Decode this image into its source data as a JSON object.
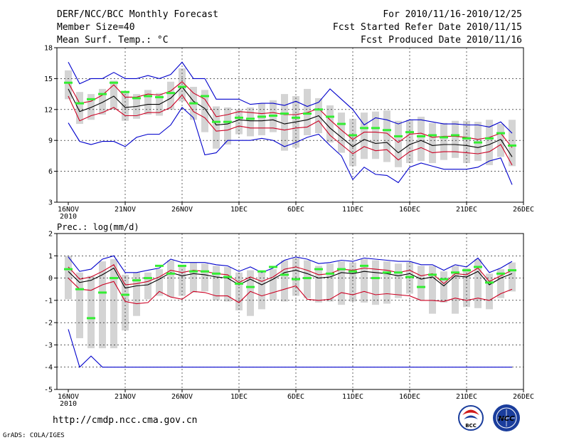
{
  "header": {
    "title": "DERF/NCC/BCC Monthly Forecast",
    "member": "Member Size=40",
    "for_range": "For 2010/11/16-2010/12/25",
    "refer_date": "Fcst Started Refer Date 2010/11/15",
    "produced_date": "Fcst Produced Date 2010/11/16"
  },
  "footer": {
    "url": "http://cmdp.ncc.cma.gov.cn",
    "credit": "GrADS: COLA/IGES",
    "logo_bcc": "BCC",
    "logo_ncc": "NCC"
  },
  "colors": {
    "ensemble_max_min": "#0000cc",
    "spread_band": "#cc0022",
    "mean": "#000000",
    "box": "#d4d4d4",
    "marker": "#33ee33",
    "frame": "#000000",
    "dashed_grid": "#000000"
  },
  "chart_data": [
    {
      "id": "temperature",
      "type": "line",
      "title": "Mean Surf. Temp.: °C",
      "xlabel": "",
      "ylabel": "",
      "ylim": [
        3,
        18
      ],
      "yticks": [
        3,
        6,
        9,
        12,
        15,
        18
      ],
      "ytick_labels": [
        "3",
        "6",
        "9",
        "12",
        "15",
        "18"
      ],
      "xticks": [
        0,
        5,
        10,
        15,
        20,
        25,
        30,
        35,
        40
      ],
      "xtick_labels": [
        "16NOV",
        "21NOV",
        "26NOV",
        "1DEC",
        "6DEC",
        "11DEC",
        "16DEC",
        "21DEC",
        "26DEC"
      ],
      "x_sub_label": "2010",
      "dashed_gridlines_at_ticks": true,
      "series": [
        {
          "name": "max",
          "color": "#0000cc",
          "values": [
            16.6,
            14.5,
            15.0,
            15.0,
            15.6,
            15.0,
            15.0,
            15.3,
            15.0,
            15.4,
            16.6,
            15.0,
            15.0,
            13.0,
            13.0,
            13.0,
            12.5,
            12.6,
            12.6,
            12.4,
            12.8,
            12.3,
            12.7,
            14.0,
            13.0,
            12.0,
            10.5,
            11.2,
            11.0,
            10.6,
            11.0,
            11.0,
            10.8,
            10.6,
            10.6,
            10.5,
            10.5,
            10.3,
            10.8,
            9.7
          ]
        },
        {
          "name": "plus_spread",
          "color": "#cc0022",
          "values": [
            14.6,
            12.6,
            12.8,
            13.4,
            14.4,
            13.2,
            13.2,
            13.5,
            13.4,
            13.8,
            14.7,
            13.6,
            13.0,
            11.3,
            11.5,
            11.8,
            11.7,
            11.6,
            11.7,
            11.5,
            11.5,
            11.7,
            12.1,
            11.0,
            10.0,
            9.1,
            9.8,
            9.8,
            9.7,
            8.8,
            9.6,
            9.7,
            9.3,
            9.4,
            9.4,
            9.3,
            9.1,
            9.3,
            9.7,
            8.3
          ]
        },
        {
          "name": "mean",
          "color": "#000000",
          "values": [
            14.0,
            11.8,
            12.2,
            12.7,
            13.3,
            12.2,
            12.3,
            12.5,
            12.5,
            13.1,
            14.2,
            12.8,
            12.1,
            10.5,
            10.6,
            11.0,
            10.9,
            10.9,
            11.0,
            10.6,
            10.8,
            11.0,
            11.4,
            10.2,
            9.3,
            8.4,
            9.1,
            8.7,
            8.8,
            7.8,
            8.6,
            9.0,
            8.5,
            8.6,
            8.6,
            8.5,
            8.3,
            8.6,
            9.1,
            7.4
          ]
        },
        {
          "name": "minus_spread",
          "color": "#cc0022",
          "values": [
            13.3,
            10.9,
            11.4,
            11.7,
            12.2,
            11.4,
            11.4,
            11.7,
            11.7,
            12.2,
            13.4,
            11.8,
            11.2,
            9.9,
            10.0,
            10.4,
            10.2,
            10.2,
            10.2,
            10.0,
            10.2,
            10.3,
            10.9,
            9.5,
            8.6,
            7.7,
            8.4,
            8.0,
            8.1,
            7.1,
            7.9,
            8.3,
            7.8,
            7.9,
            7.9,
            7.8,
            7.7,
            7.9,
            8.6,
            6.6
          ]
        },
        {
          "name": "min",
          "color": "#0000cc",
          "values": [
            10.7,
            8.9,
            8.6,
            8.9,
            8.9,
            8.4,
            9.3,
            9.6,
            9.6,
            10.5,
            12.2,
            11.2,
            7.6,
            7.8,
            9.0,
            9.0,
            9.0,
            9.2,
            9.0,
            8.4,
            8.8,
            9.3,
            9.6,
            8.5,
            7.5,
            5.2,
            6.4,
            5.7,
            5.6,
            4.9,
            6.4,
            6.8,
            6.5,
            6.2,
            6.2,
            6.2,
            6.4,
            7.0,
            7.3,
            4.7
          ]
        }
      ],
      "boxes": {
        "low": [
          13.0,
          10.6,
          11.0,
          11.5,
          12.0,
          10.9,
          11.1,
          11.5,
          11.4,
          12.0,
          12.8,
          11.0,
          9.8,
          8.2,
          8.6,
          9.6,
          9.4,
          9.5,
          9.8,
          8.0,
          8.3,
          9.5,
          9.7,
          8.8,
          7.8,
          6.5,
          7.2,
          7.2,
          6.9,
          6.4,
          6.8,
          7.0,
          6.8,
          7.1,
          7.3,
          6.8,
          7.0,
          6.6,
          7.4,
          6.5
        ],
        "high": [
          15.8,
          13.7,
          13.5,
          14.0,
          14.8,
          13.7,
          13.5,
          13.9,
          13.6,
          14.7,
          16.0,
          14.2,
          13.9,
          12.3,
          12.2,
          12.0,
          12.2,
          12.6,
          12.9,
          13.5,
          13.3,
          14.0,
          13.1,
          12.4,
          11.7,
          11.1,
          11.7,
          11.8,
          11.9,
          10.9,
          11.0,
          11.3,
          10.7,
          10.7,
          10.9,
          10.9,
          10.8,
          11.0,
          10.6,
          11.0
        ]
      },
      "markers": [
        14.6,
        12.6,
        13.0,
        13.5,
        14.6,
        13.7,
        13.1,
        13.3,
        13.2,
        13.6,
        14.2,
        12.6,
        13.3,
        10.8,
        10.8,
        11.2,
        11.1,
        11.3,
        11.4,
        11.6,
        11.2,
        11.6,
        12.0,
        11.3,
        10.6,
        9.5,
        10.2,
        10.2,
        10.0,
        9.4,
        9.8,
        9.4,
        9.5,
        9.3,
        9.5,
        9.2,
        8.8,
        9.2,
        9.7,
        8.5
      ]
    },
    {
      "id": "precipitation",
      "type": "line",
      "title": "Prec.: log(mm/d)",
      "xlabel": "",
      "ylabel": "",
      "ylim": [
        -5,
        2
      ],
      "yticks": [
        -5,
        -4,
        -3,
        -2,
        -1,
        0,
        1,
        2
      ],
      "ytick_labels": [
        "-5",
        "-4",
        "-3",
        "-2",
        "-1",
        "0",
        "1",
        "2"
      ],
      "xticks": [
        0,
        5,
        10,
        15,
        20,
        25,
        30,
        35,
        40
      ],
      "xtick_labels": [
        "16NOV",
        "21NOV",
        "26NOV",
        "1DEC",
        "6DEC",
        "11DEC",
        "16DEC",
        "21DEC",
        "26DEC"
      ],
      "x_sub_label": "2010",
      "dashed_gridlines_at_ticks": true,
      "series": [
        {
          "name": "max",
          "color": "#0000cc",
          "values": [
            0.95,
            0.3,
            0.4,
            0.85,
            1.0,
            0.25,
            0.25,
            0.35,
            0.45,
            0.85,
            0.7,
            0.7,
            0.7,
            0.6,
            0.55,
            0.3,
            0.5,
            0.25,
            0.45,
            0.8,
            0.95,
            0.85,
            0.65,
            0.7,
            0.8,
            0.75,
            0.9,
            0.85,
            0.8,
            0.75,
            0.75,
            0.6,
            0.6,
            0.35,
            0.6,
            0.5,
            0.9,
            0.25,
            0.45,
            0.75
          ]
        },
        {
          "name": "plus_spread",
          "color": "#cc0022",
          "values": [
            0.5,
            -0.05,
            0.05,
            0.3,
            0.6,
            -0.3,
            -0.25,
            -0.15,
            0.05,
            0.35,
            0.25,
            0.35,
            0.3,
            0.2,
            0.15,
            -0.2,
            0.05,
            -0.15,
            0.05,
            0.4,
            0.5,
            0.35,
            0.15,
            0.2,
            0.4,
            0.35,
            0.45,
            0.4,
            0.35,
            0.25,
            0.35,
            0.1,
            0.2,
            -0.25,
            0.2,
            0.15,
            0.45,
            -0.15,
            0.1,
            0.35
          ]
        },
        {
          "name": "mean",
          "color": "#000000",
          "values": [
            0.3,
            -0.2,
            -0.1,
            0.15,
            0.45,
            -0.45,
            -0.35,
            -0.3,
            -0.05,
            0.25,
            0.1,
            0.2,
            0.15,
            0.05,
            0.0,
            -0.3,
            -0.05,
            -0.3,
            -0.05,
            0.25,
            0.35,
            0.2,
            0.0,
            0.05,
            0.25,
            0.2,
            0.3,
            0.25,
            0.2,
            0.1,
            0.2,
            -0.05,
            0.05,
            -0.35,
            0.1,
            0.05,
            0.3,
            -0.3,
            0.0,
            0.2
          ]
        },
        {
          "name": "minus_spread",
          "color": "#cc0022",
          "values": [
            0.0,
            -0.5,
            -0.55,
            -0.3,
            -0.15,
            -1.05,
            -1.15,
            -1.1,
            -0.6,
            -0.85,
            -0.95,
            -0.6,
            -0.65,
            -0.8,
            -0.8,
            -1.1,
            -0.6,
            -0.8,
            -0.65,
            -0.5,
            -0.35,
            -0.95,
            -1.0,
            -0.95,
            -0.65,
            -0.75,
            -0.6,
            -0.75,
            -0.7,
            -0.75,
            -0.8,
            -1.0,
            -1.0,
            -1.05,
            -0.9,
            -1.0,
            -0.9,
            -1.0,
            -0.7,
            -0.5
          ]
        },
        {
          "name": "min",
          "color": "#0000cc",
          "values": [
            -2.3,
            -4.0,
            -3.5,
            -4.0,
            -4.0,
            -4.0,
            -4.0,
            -4.0,
            -4.0,
            -4.0,
            -4.0,
            -4.0,
            -4.0,
            -4.0,
            -4.0,
            -4.0,
            -4.0,
            -4.0,
            -4.0,
            -4.0,
            -4.0,
            -4.0,
            -4.0,
            -4.0,
            -4.0,
            -4.0,
            -4.0,
            -4.0,
            -4.0,
            -4.0,
            -4.0,
            -4.0,
            -4.0,
            -4.0,
            -4.0,
            -4.0,
            -4.0,
            -4.0,
            -4.0,
            -4.0
          ]
        }
      ],
      "boxes": {
        "low": [
          -0.95,
          -2.7,
          -3.15,
          -3.15,
          -3.15,
          -2.35,
          -1.7,
          -0.95,
          -0.8,
          -0.85,
          -0.8,
          -0.65,
          -0.6,
          -1.0,
          -1.05,
          -1.45,
          -1.7,
          -1.4,
          -1.0,
          -1.05,
          -0.8,
          -0.9,
          -1.1,
          -1.05,
          -1.2,
          -1.05,
          -1.1,
          -1.2,
          -1.15,
          -0.9,
          -0.7,
          -1.0,
          -1.6,
          -1.1,
          -1.6,
          -1.3,
          -1.35,
          -1.4,
          -0.9,
          -0.6
        ],
        "high": [
          1.0,
          0.25,
          0.1,
          0.75,
          0.85,
          0.15,
          0.25,
          0.25,
          0.4,
          0.8,
          0.55,
          0.7,
          0.65,
          0.55,
          0.5,
          0.25,
          0.35,
          0.25,
          0.4,
          0.8,
          0.9,
          0.8,
          0.55,
          0.65,
          0.75,
          0.7,
          0.85,
          0.8,
          0.75,
          0.65,
          0.7,
          0.55,
          0.55,
          0.3,
          0.55,
          0.45,
          0.85,
          0.2,
          0.4,
          0.7
        ]
      },
      "markers": [
        0.4,
        -0.5,
        -1.8,
        -0.65,
        0.0,
        -0.75,
        -0.1,
        0.0,
        0.55,
        0.2,
        0.55,
        0.3,
        0.3,
        0.2,
        0.05,
        -0.25,
        -0.4,
        0.3,
        0.5,
        0.15,
        -0.05,
        0.0,
        0.4,
        0.2,
        0.4,
        0.3,
        0.55,
        0.0,
        0.25,
        0.25,
        0.05,
        -0.4,
        0.15,
        -0.05,
        0.25,
        0.35,
        0.5,
        -0.2,
        0.2,
        0.35
      ]
    }
  ]
}
